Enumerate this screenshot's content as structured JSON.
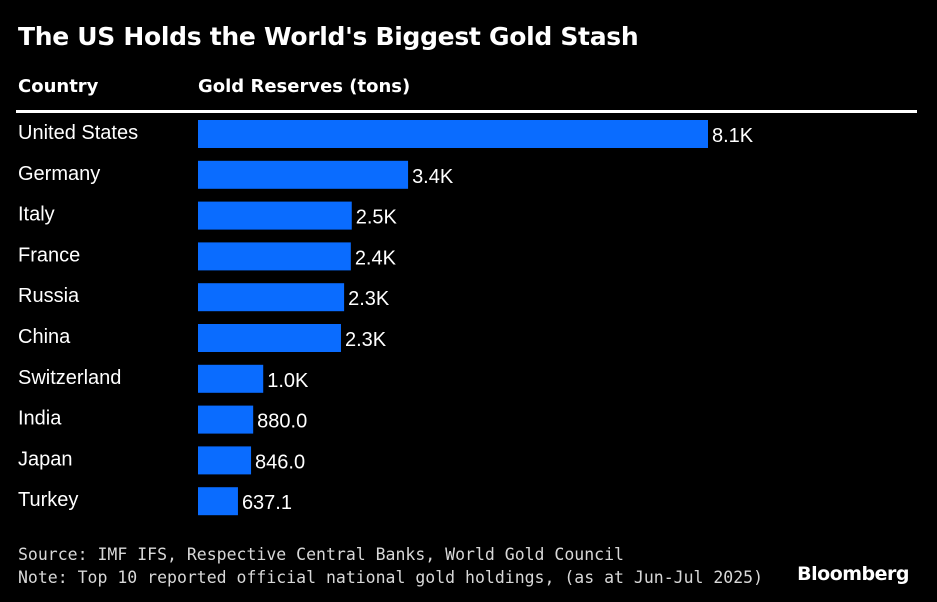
{
  "title": "The US Holds the World's Biggest Gold Stash",
  "column_headers": {
    "country": "Country",
    "value": "Gold Reserves (tons)"
  },
  "colors": {
    "bar": "#0a6cff",
    "background": "#000000",
    "text": "#ffffff"
  },
  "chart_data": {
    "type": "bar",
    "orientation": "horizontal",
    "title": "The US Holds the World's Biggest Gold Stash",
    "xlabel": "Gold Reserves (tons)",
    "ylabel": "Country",
    "categories": [
      "United States",
      "Germany",
      "Italy",
      "France",
      "Russia",
      "China",
      "Switzerland",
      "India",
      "Japan",
      "Turkey"
    ],
    "values": [
      8133,
      3350,
      2452,
      2437,
      2330,
      2280,
      1040,
      880.0,
      846.0,
      637.1
    ],
    "labels": [
      "8.1K",
      "3.4K",
      "2.5K",
      "2.4K",
      "2.3K",
      "2.3K",
      "1.0K",
      "880.0",
      "846.0",
      "637.1"
    ],
    "xlim": [
      0,
      8133
    ],
    "grid": false,
    "legend": "none"
  },
  "footer": {
    "source": "Source: IMF IFS, Respective Central Banks, World Gold Council",
    "note": "Note: Top 10 reported official national gold holdings, (as at Jun-Jul 2025)",
    "brand": "Bloomberg"
  }
}
